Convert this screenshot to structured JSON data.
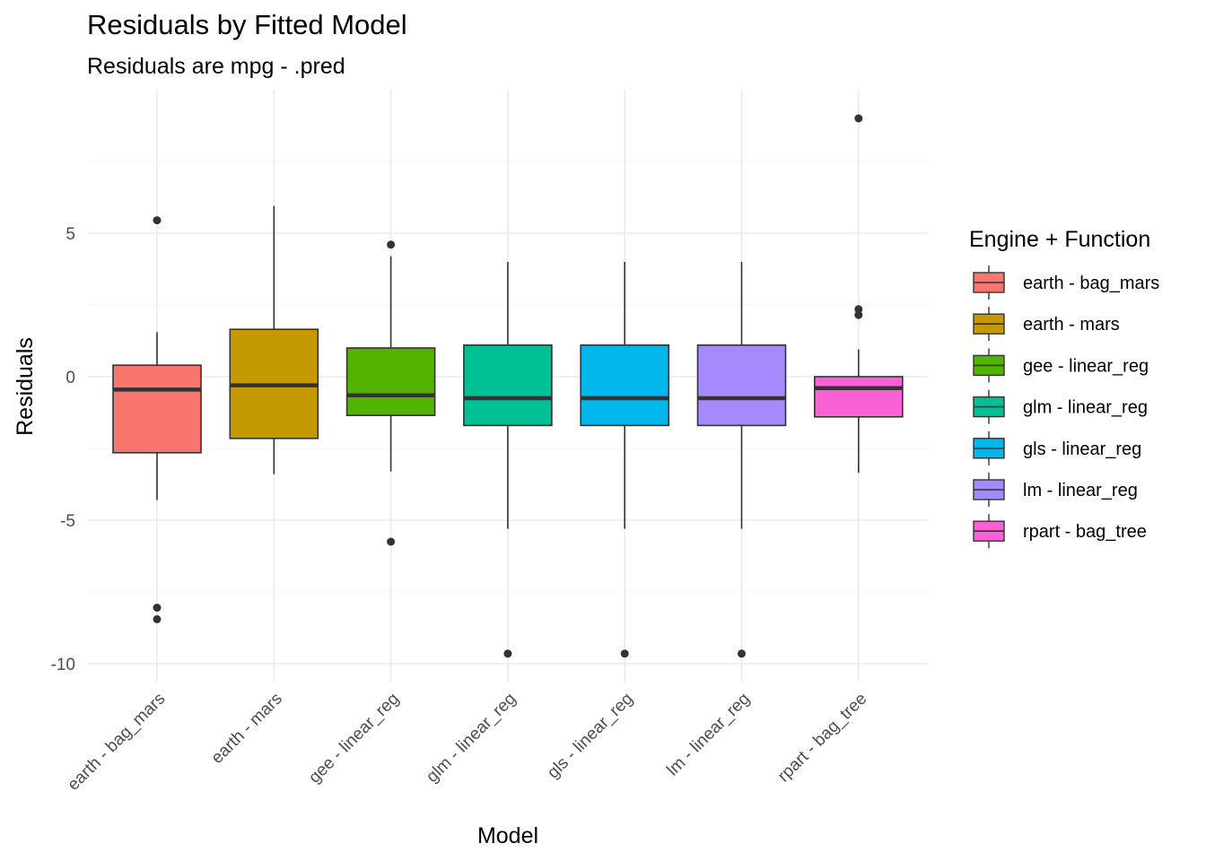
{
  "title": "Residuals by Fitted Model",
  "subtitle": "Residuals are mpg - .pred",
  "chart_data": {
    "type": "boxplot",
    "title": "Residuals by Fitted Model",
    "subtitle": "Residuals are mpg - .pred",
    "xlabel": "Model",
    "ylabel": "Residuals",
    "ylim": [
      -10.6,
      10.2
    ],
    "yticks": [
      5,
      0,
      -5,
      -10
    ],
    "ytick_labels": [
      "5",
      "0",
      "-5",
      "-10"
    ],
    "grid": true,
    "legend": {
      "title": "Engine + Function",
      "position": "right"
    },
    "categories": [
      "earth - bag_mars",
      "earth - mars",
      "gee - linear_reg",
      "glm - linear_reg",
      "gls - linear_reg",
      "lm - linear_reg",
      "rpart - bag_tree"
    ],
    "series": [
      {
        "name": "earth - bag_mars",
        "color": "#F8766D",
        "whisker_low": -4.3,
        "q1": -2.65,
        "median": -0.45,
        "q3": 0.4,
        "whisker_high": 1.55,
        "outliers": [
          5.45,
          -8.05,
          -8.45
        ]
      },
      {
        "name": "earth - mars",
        "color": "#C49A00",
        "whisker_low": -3.4,
        "q1": -2.15,
        "median": -0.3,
        "q3": 1.65,
        "whisker_high": 5.95,
        "outliers": []
      },
      {
        "name": "gee - linear_reg",
        "color": "#53B400",
        "whisker_low": -3.3,
        "q1": -1.35,
        "median": -0.65,
        "q3": 1.0,
        "whisker_high": 4.2,
        "outliers": [
          4.6,
          -5.75
        ]
      },
      {
        "name": "glm - linear_reg",
        "color": "#00C094",
        "whisker_low": -5.3,
        "q1": -1.7,
        "median": -0.75,
        "q3": 1.1,
        "whisker_high": 4.0,
        "outliers": [
          -9.65
        ]
      },
      {
        "name": "gls - linear_reg",
        "color": "#00B6EB",
        "whisker_low": -5.3,
        "q1": -1.7,
        "median": -0.75,
        "q3": 1.1,
        "whisker_high": 4.0,
        "outliers": [
          -9.65
        ]
      },
      {
        "name": "lm - linear_reg",
        "color": "#A58AFF",
        "whisker_low": -5.3,
        "q1": -1.7,
        "median": -0.75,
        "q3": 1.1,
        "whisker_high": 4.0,
        "outliers": [
          -9.65
        ]
      },
      {
        "name": "rpart - bag_tree",
        "color": "#FB61D7",
        "whisker_low": -3.35,
        "q1": -1.4,
        "median": -0.4,
        "q3": 0.0,
        "whisker_high": 0.95,
        "outliers": [
          9.0,
          2.35,
          2.15
        ]
      }
    ]
  }
}
